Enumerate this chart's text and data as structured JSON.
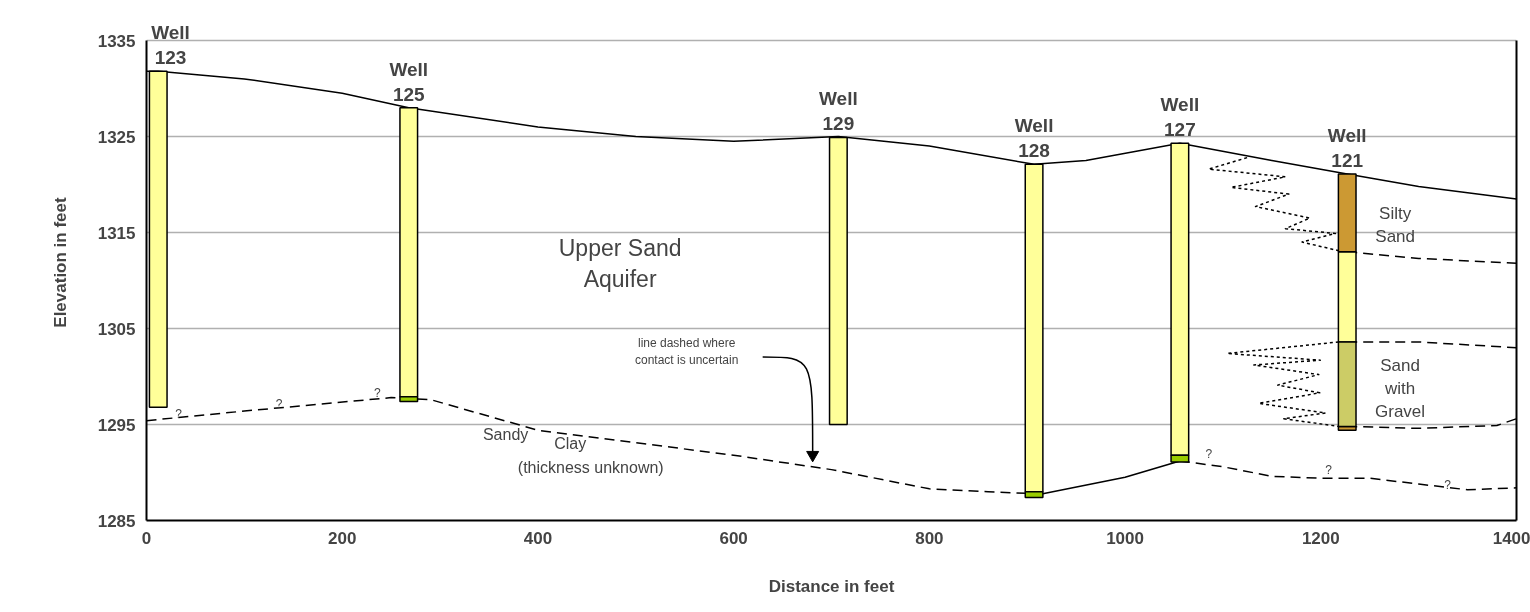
{
  "chart_data": {
    "type": "bar",
    "xlabel": "Distance in feet",
    "ylabel": "Elevation in feet",
    "xlim": [
      0,
      1400
    ],
    "ylim": [
      1285,
      1335
    ],
    "xticks": [
      0,
      200,
      400,
      600,
      800,
      1000,
      1200,
      1400
    ],
    "yticks": [
      1285,
      1295,
      1305,
      1315,
      1325,
      1335
    ],
    "grid": "y",
    "series": [
      {
        "color": "#ffff99",
        "x": [
          12,
          268,
          707,
          907,
          1056,
          1227
        ],
        "base": [
          1296.8,
          1297.9,
          1295.0,
          1288.0,
          1291.8,
          1303.6
        ],
        "values": [
          35.0,
          30.1,
          29.9,
          34.1,
          32.5,
          9.4
        ]
      },
      {
        "color": "#99cc00",
        "x": [
          268,
          907,
          1056
        ],
        "base": [
          1297.4,
          1287.4,
          1291.1
        ],
        "values": [
          0.5,
          0.6,
          0.7
        ]
      },
      {
        "color": "#cc9933",
        "x": [
          1227,
          1227
        ],
        "base": [
          1313.0,
          1294.4
        ],
        "values": [
          8.1,
          0.4
        ]
      },
      {
        "color": "#cccc66",
        "x": [
          1227
        ],
        "base": [
          1294.8
        ],
        "values": [
          8.8
        ]
      },
      {
        "type": "line",
        "color": "#000000",
        "line_style": "solid",
        "x": [
          0,
          12,
          100,
          200,
          268,
          400,
          500,
          600,
          707,
          800,
          907,
          960,
          1056,
          1150,
          1227,
          1300,
          1400
        ],
        "values": [
          1331.8,
          1331.8,
          1331.0,
          1329.5,
          1328.0,
          1326.0,
          1325.0,
          1324.5,
          1325.0,
          1324.0,
          1322.1,
          1322.5,
          1324.3,
          1322.5,
          1321.1,
          1319.8,
          1318.5
        ]
      },
      {
        "type": "line",
        "color": "#000000",
        "line_style": "dashed",
        "x": [
          0,
          100,
          250,
          290,
          400,
          600,
          700,
          800,
          860,
          907
        ],
        "values": [
          1295.4,
          1296.4,
          1297.8,
          1297.6,
          1294.4,
          1291.8,
          1290.3,
          1288.3,
          1288.0,
          1287.8
        ]
      },
      {
        "type": "line",
        "color": "#000000",
        "line_style": "solid",
        "x": [
          907,
          1000,
          1056
        ],
        "values": [
          1287.6,
          1289.5,
          1291.2
        ]
      },
      {
        "type": "line",
        "color": "#000000",
        "line_style": "dashed",
        "x": [
          1056,
          1100,
          1150,
          1200,
          1250,
          1300,
          1350,
          1400
        ],
        "values": [
          1291.2,
          1290.6,
          1289.6,
          1289.4,
          1289.4,
          1288.8,
          1288.2,
          1288.4
        ]
      },
      {
        "type": "line",
        "color": "#000000",
        "line_style": "dashed",
        "x": [
          1227,
          1300,
          1400
        ],
        "values": [
          1313.0,
          1312.3,
          1311.8
        ]
      },
      {
        "type": "line",
        "color": "#000000",
        "line_style": "dashed",
        "x": [
          1227,
          1300,
          1400
        ],
        "values": [
          1303.6,
          1303.6,
          1303.0
        ]
      },
      {
        "type": "line",
        "color": "#000000",
        "line_style": "dashed",
        "x": [
          1227,
          1300,
          1380,
          1400
        ],
        "values": [
          1294.8,
          1294.6,
          1294.9,
          1295.6
        ]
      },
      {
        "type": "line",
        "color": "#000000",
        "line_style": "dotted",
        "x": [
          1124.7,
          1085.5,
          1163.9,
          1108.3,
          1167.3,
          1133.3,
          1188.8,
          1163.9,
          1215.0,
          1180.9,
          1218.5
        ],
        "values": [
          1322.8,
          1321.6,
          1320.8,
          1319.7,
          1319.0,
          1317.7,
          1316.5,
          1315.4,
          1314.9,
          1314.0,
          1313.1
        ]
      },
      {
        "type": "line",
        "color": "#000000",
        "line_style": "dotted",
        "x": [
          1218.4,
          1104.3,
          1199.5,
          1131.6,
          1197.9,
          1156.0,
          1198.9,
          1136.7,
          1204.8,
          1162.2,
          1218.4
        ],
        "values": [
          1303.6,
          1302.4,
          1301.7,
          1301.2,
          1300.2,
          1299.1,
          1298.3,
          1297.2,
          1296.2,
          1295.6,
          1294.8
        ]
      }
    ],
    "annotations": [
      {
        "text": "Well\n123",
        "x": 12,
        "y": 1331.8
      },
      {
        "text": "Well\n125",
        "x": 268,
        "y": 1328.0
      },
      {
        "text": "Well\n129",
        "x": 707,
        "y": 1324.9
      },
      {
        "text": "Well\n128",
        "x": 907,
        "y": 1322.1
      },
      {
        "text": "Well\n127",
        "x": 1056,
        "y": 1324.3
      },
      {
        "text": "Well\n121",
        "x": 1227,
        "y": 1321.1
      },
      "Upper Sand\nAquifer",
      "Sandy",
      "Clay",
      "(thickness unknown)",
      "line dashed where\ncontact is uncertain",
      "Silty\nSand",
      "Sand\nwith\nGravel",
      {
        "text": "?",
        "x": 32.7,
        "y": 1295.3
      },
      {
        "text": "?",
        "x": 135.5,
        "y": 1296.3
      },
      {
        "text": "?",
        "x": 236,
        "y": 1297.4
      },
      {
        "text": "?",
        "x": 1085.5,
        "y": 1291.1
      },
      {
        "text": "?",
        "x": 1208,
        "y": 1289.4
      },
      {
        "text": "?",
        "x": 1329.7,
        "y": 1287.9
      }
    ]
  }
}
